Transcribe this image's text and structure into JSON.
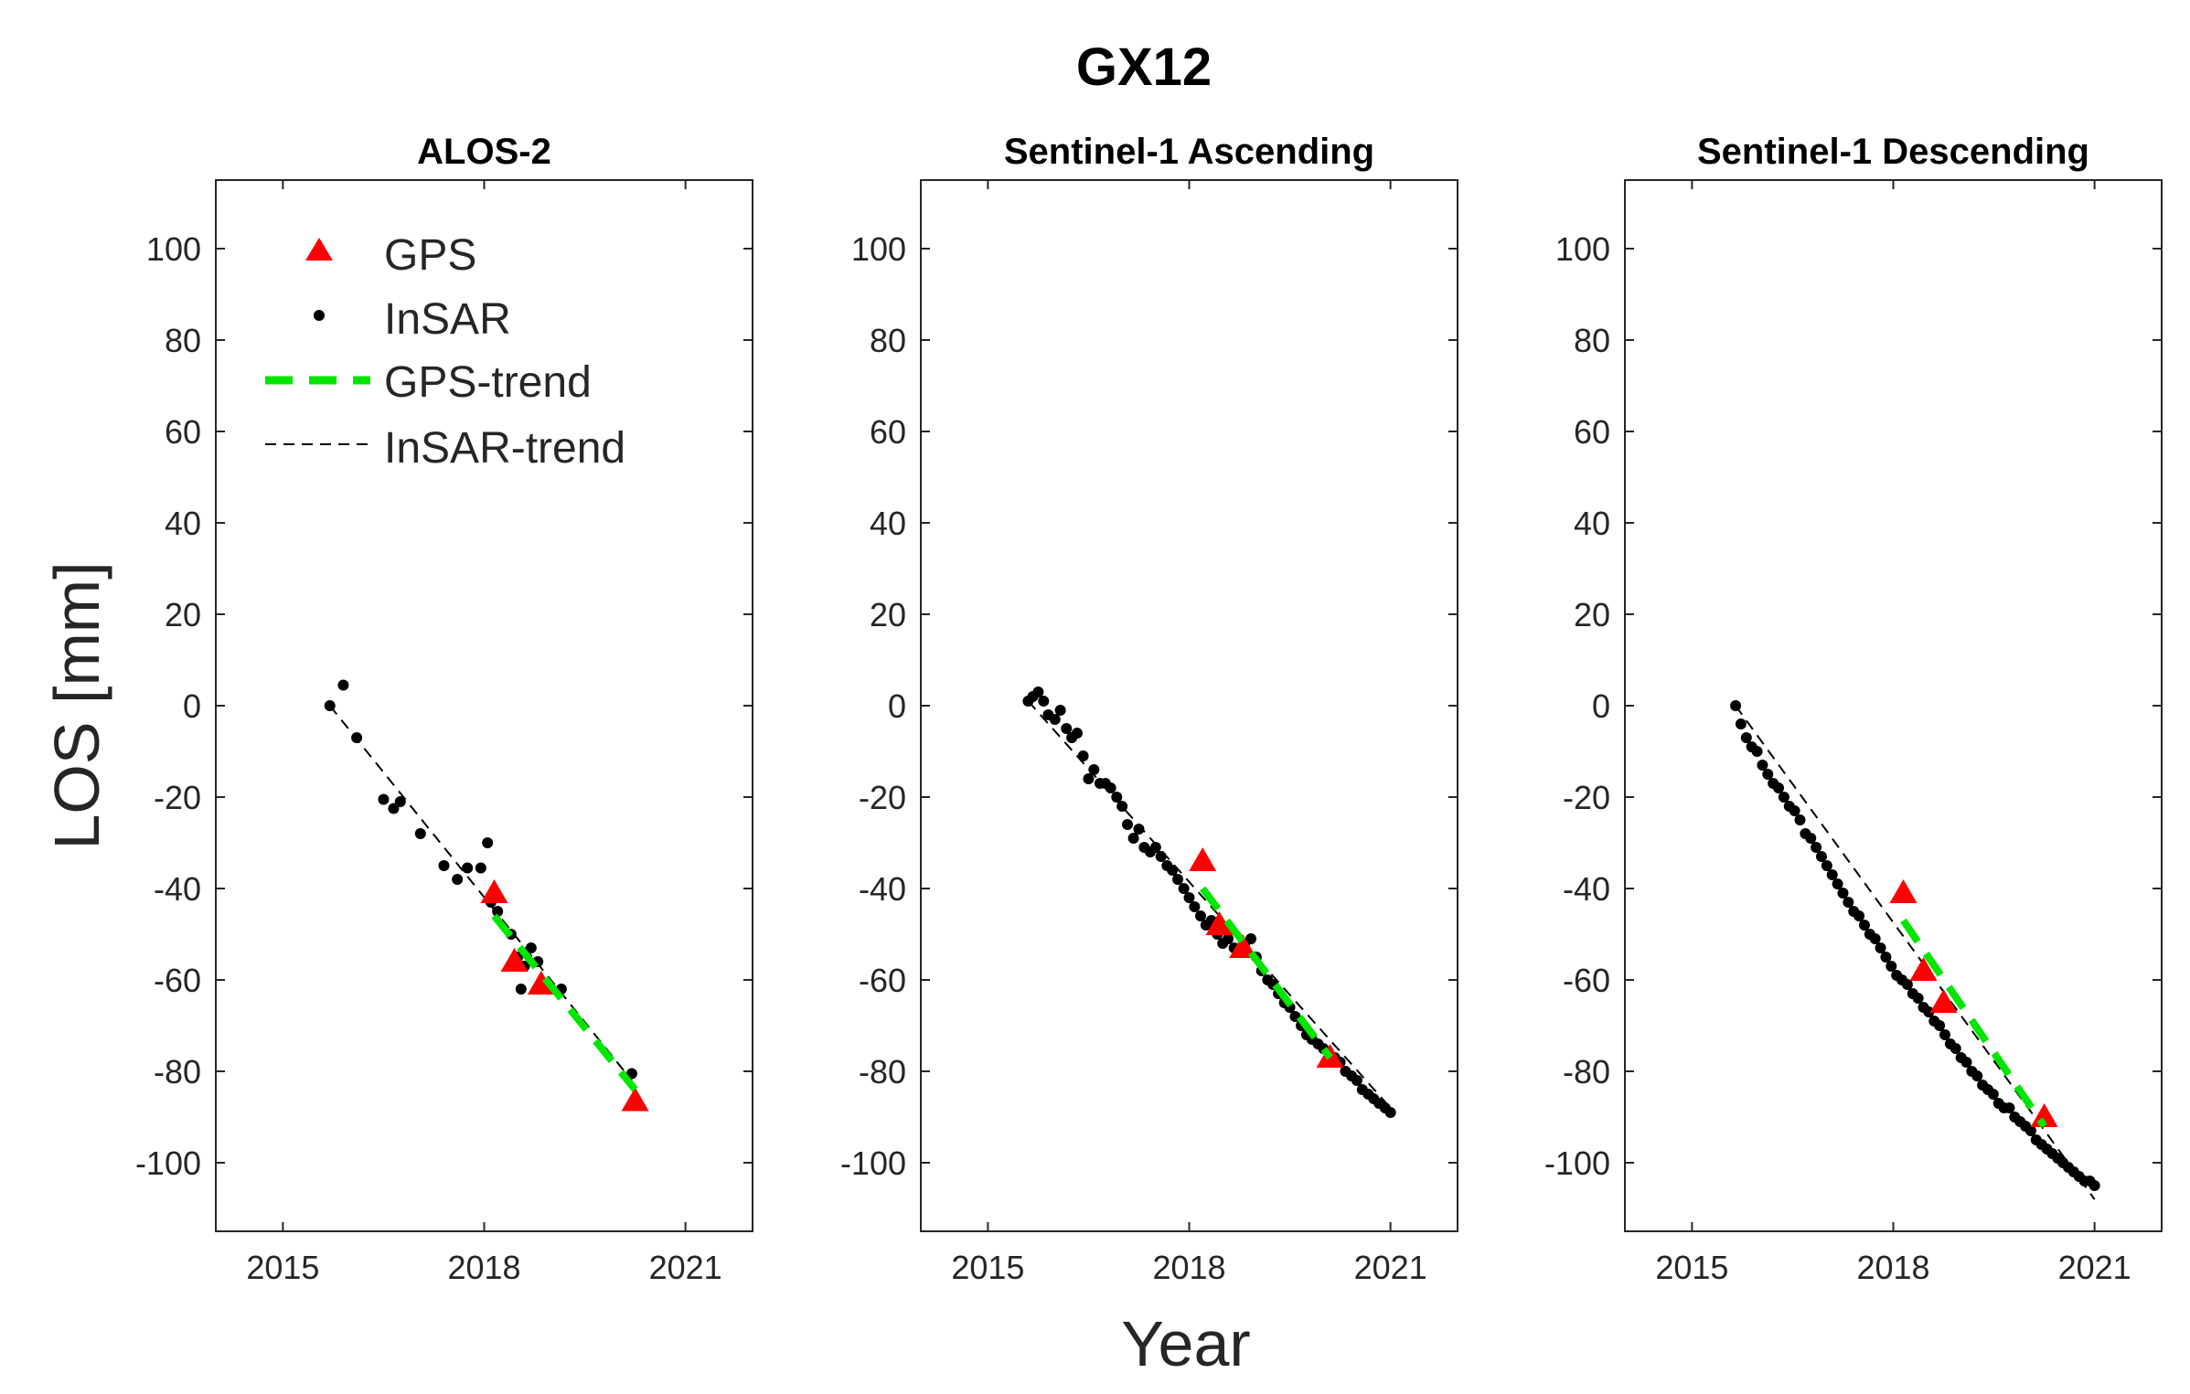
{
  "figure": {
    "title": "GX12",
    "xlabel": "Year",
    "ylabel": "LOS [mm]"
  },
  "legend": {
    "location": "top-left of first panel",
    "entries": [
      {
        "label": "GPS",
        "kind": "marker-triangle"
      },
      {
        "label": "InSAR",
        "kind": "marker-dot"
      },
      {
        "label": "GPS-trend",
        "kind": "line-dashed-green"
      },
      {
        "label": "InSAR-trend",
        "kind": "line-dashed-black"
      }
    ]
  },
  "colors": {
    "gps": "#ff0000",
    "insar": "#000000",
    "gps_trend": "#00e600",
    "insar_trend": "#000000",
    "axes": "#262626"
  },
  "chart_data": [
    {
      "type": "scatter",
      "title": "ALOS-2",
      "xlim": [
        2014,
        2022
      ],
      "ylim": [
        -115,
        115
      ],
      "xticks": [
        2015,
        2018,
        2021
      ],
      "xtick_labels": [
        "2015",
        "2018",
        "2021"
      ],
      "yticks": [
        -100,
        -80,
        -60,
        -40,
        -20,
        0,
        20,
        40,
        60,
        80,
        100
      ],
      "ytick_labels": [
        "-100",
        "-80",
        "-60",
        "-40",
        "-20",
        "0",
        "20",
        "40",
        "60",
        "80",
        "100"
      ],
      "series": [
        {
          "name": "InSAR",
          "x": [
            2015.7,
            2015.9,
            2016.1,
            2016.5,
            2016.65,
            2016.75,
            2017.05,
            2017.4,
            2017.6,
            2017.75,
            2017.95,
            2018.05,
            2018.1,
            2018.2,
            2018.4,
            2018.5,
            2018.55,
            2018.6,
            2018.7,
            2018.8,
            2018.9,
            2019.15,
            2020.2
          ],
          "y": [
            0,
            4.5,
            -7,
            -20.5,
            -22.5,
            -21,
            -28,
            -35,
            -38,
            -35.5,
            -35.5,
            -30,
            -43,
            -45,
            -50,
            -55,
            -62,
            -57,
            -53,
            -56,
            -61.5,
            -62,
            -80.5
          ]
        },
        {
          "name": "GPS",
          "x": [
            2018.15,
            2018.45,
            2018.85,
            2020.25
          ],
          "y": [
            -41,
            -56,
            -61,
            -86.5
          ]
        },
        {
          "name": "GPS-trend",
          "x": [
            2018.15,
            2020.25
          ],
          "y": [
            -46,
            -84
          ]
        },
        {
          "name": "InSAR-trend",
          "x": [
            2015.7,
            2020.2
          ],
          "y": [
            0,
            -82
          ]
        }
      ]
    },
    {
      "type": "scatter",
      "title": "Sentinel-1 Ascending",
      "xlim": [
        2014,
        2022
      ],
      "ylim": [
        -115,
        115
      ],
      "xticks": [
        2015,
        2018,
        2021
      ],
      "xtick_labels": [
        "2015",
        "2018",
        "2021"
      ],
      "yticks": [
        -100,
        -80,
        -60,
        -40,
        -20,
        0,
        20,
        40,
        60,
        80,
        100
      ],
      "ytick_labels": [
        "-100",
        "-80",
        "-60",
        "-40",
        "-20",
        "0",
        "20",
        "40",
        "60",
        "80",
        "100"
      ],
      "series": [
        {
          "name": "InSAR",
          "x": [
            2015.6,
            2015.67,
            2015.75,
            2015.83,
            2015.9,
            2016.0,
            2016.08,
            2016.17,
            2016.25,
            2016.33,
            2016.42,
            2016.5,
            2016.58,
            2016.67,
            2016.75,
            2016.83,
            2016.92,
            2017.0,
            2017.08,
            2017.17,
            2017.25,
            2017.33,
            2017.42,
            2017.5,
            2017.58,
            2017.67,
            2017.75,
            2017.83,
            2017.92,
            2018.0,
            2018.08,
            2018.17,
            2018.25,
            2018.33,
            2018.42,
            2018.5,
            2018.58,
            2018.67,
            2018.75,
            2018.83,
            2018.92,
            2019.0,
            2019.08,
            2019.17,
            2019.25,
            2019.33,
            2019.42,
            2019.5,
            2019.58,
            2019.67,
            2019.75,
            2019.83,
            2019.92,
            2020.0,
            2020.08,
            2020.17,
            2020.25,
            2020.33,
            2020.42,
            2020.5,
            2020.58,
            2020.67,
            2020.75,
            2020.83,
            2020.92,
            2021.0
          ],
          "y": [
            1,
            2,
            3,
            1,
            -2,
            -3,
            -1,
            -5,
            -7,
            -6,
            -11,
            -16,
            -14,
            -17,
            -17,
            -18,
            -20,
            -22,
            -26,
            -29,
            -27,
            -31,
            -32,
            -31,
            -33,
            -35,
            -36,
            -38,
            -40,
            -42,
            -44,
            -46,
            -48,
            -47,
            -50,
            -52,
            -51,
            -53,
            -54,
            -52,
            -51,
            -55,
            -58,
            -60,
            -61,
            -63,
            -65,
            -66,
            -68,
            -70,
            -72,
            -73,
            -74,
            -75,
            -76,
            -77,
            -78,
            -80,
            -81,
            -82,
            -84,
            -85,
            -86,
            -87,
            -88,
            -89
          ]
        },
        {
          "name": "GPS",
          "x": [
            2018.2,
            2018.45,
            2018.8,
            2020.1
          ],
          "y": [
            -34,
            -48,
            -53,
            -77
          ]
        },
        {
          "name": "GPS-trend",
          "x": [
            2018.2,
            2020.1
          ],
          "y": [
            -40,
            -77
          ]
        },
        {
          "name": "InSAR-trend",
          "x": [
            2015.6,
            2021.0
          ],
          "y": [
            1,
            -88
          ]
        }
      ]
    },
    {
      "type": "scatter",
      "title": "Sentinel-1 Descending",
      "xlim": [
        2014,
        2022
      ],
      "ylim": [
        -115,
        115
      ],
      "xticks": [
        2015,
        2018,
        2021
      ],
      "xtick_labels": [
        "2015",
        "2018",
        "2021"
      ],
      "yticks": [
        -100,
        -80,
        -60,
        -40,
        -20,
        0,
        20,
        40,
        60,
        80,
        100
      ],
      "ytick_labels": [
        "-100",
        "-80",
        "-60",
        "-40",
        "-20",
        "0",
        "20",
        "40",
        "60",
        "80",
        "100"
      ],
      "series": [
        {
          "name": "InSAR",
          "x": [
            2015.65,
            2015.73,
            2015.81,
            2015.89,
            2015.97,
            2016.05,
            2016.13,
            2016.21,
            2016.29,
            2016.37,
            2016.45,
            2016.53,
            2016.61,
            2016.69,
            2016.77,
            2016.85,
            2016.93,
            2017.01,
            2017.09,
            2017.17,
            2017.25,
            2017.33,
            2017.41,
            2017.49,
            2017.57,
            2017.65,
            2017.73,
            2017.81,
            2017.89,
            2017.97,
            2018.05,
            2018.13,
            2018.21,
            2018.29,
            2018.37,
            2018.45,
            2018.53,
            2018.61,
            2018.69,
            2018.77,
            2018.85,
            2018.93,
            2019.01,
            2019.09,
            2019.17,
            2019.25,
            2019.33,
            2019.41,
            2019.49,
            2019.57,
            2019.65,
            2019.73,
            2019.81,
            2019.89,
            2019.97,
            2020.05,
            2020.13,
            2020.21,
            2020.29,
            2020.37,
            2020.45,
            2020.53,
            2020.61,
            2020.69,
            2020.77,
            2020.85,
            2020.93,
            2021.0
          ],
          "y": [
            0,
            -4,
            -7,
            -9,
            -10,
            -13,
            -15,
            -17,
            -18,
            -20,
            -22,
            -23,
            -25,
            -28,
            -29,
            -31,
            -33,
            -35,
            -37,
            -39,
            -41,
            -43,
            -45,
            -46,
            -48,
            -50,
            -51,
            -53,
            -55,
            -57,
            -59,
            -60,
            -61,
            -63,
            -64,
            -66,
            -67,
            -69,
            -70,
            -72,
            -74,
            -75,
            -77,
            -78,
            -80,
            -81,
            -83,
            -84,
            -85,
            -87,
            -88,
            -88,
            -90,
            -91,
            -92,
            -93,
            -95,
            -96,
            -97,
            -98,
            -99,
            -100,
            -101,
            -102,
            -103,
            -104,
            -104,
            -105
          ]
        },
        {
          "name": "GPS",
          "x": [
            2018.15,
            2018.45,
            2018.75,
            2020.25
          ],
          "y": [
            -41,
            -58,
            -65,
            -90
          ]
        },
        {
          "name": "GPS-trend",
          "x": [
            2018.15,
            2020.25
          ],
          "y": [
            -47,
            -92
          ]
        },
        {
          "name": "InSAR-trend",
          "x": [
            2015.65,
            2021.0
          ],
          "y": [
            0,
            -108
          ]
        }
      ]
    }
  ]
}
